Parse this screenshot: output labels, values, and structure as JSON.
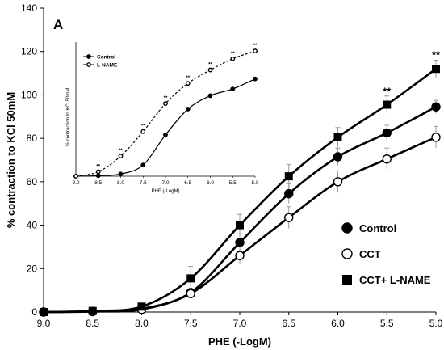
{
  "panel_label": "A",
  "chart_data": [
    {
      "type": "line",
      "xlabel": "PHE (-LogM)",
      "ylabel": "% contraction to KCl 50mM",
      "x": [
        9.0,
        8.5,
        8.0,
        7.5,
        7.0,
        6.5,
        6.0,
        5.5,
        5.0
      ],
      "x_tick_labels": [
        "9.0",
        "8.5",
        "8.0",
        "7.5",
        "7.0",
        "6.5",
        "6.0",
        "5.5",
        "5.0"
      ],
      "xlim": [
        9.0,
        5.0
      ],
      "x_reversed": true,
      "ylim": [
        0,
        140
      ],
      "y_ticks": [
        0,
        20,
        40,
        60,
        80,
        100,
        120,
        140
      ],
      "grid": false,
      "legend_position": "bottom-right",
      "series": [
        {
          "name": "Control",
          "marker": "filled-circle",
          "values": [
            0,
            0.3,
            1.5,
            9,
            32,
            54.5,
            71.5,
            82.5,
            94.5
          ],
          "errors": [
            0,
            0.2,
            0.5,
            1.5,
            4,
            4.5,
            4,
            3.5,
            3
          ]
        },
        {
          "name": "CCT",
          "marker": "open-circle",
          "values": [
            0,
            0.2,
            1.2,
            8.5,
            26,
            43.5,
            60,
            70.5,
            80.5
          ],
          "errors": [
            0,
            0.2,
            0.5,
            1.5,
            4,
            5,
            5,
            5,
            5
          ]
        },
        {
          "name": "CCT+ L-NAME",
          "marker": "filled-square",
          "values": [
            0,
            0.5,
            2.5,
            15.5,
            40,
            62.5,
            80.5,
            95.5,
            112
          ],
          "errors": [
            0,
            0.3,
            1,
            5.5,
            5,
            5.5,
            4.5,
            4,
            4
          ]
        }
      ],
      "annotations": [
        {
          "text": "**",
          "x": 5.5,
          "y": 100
        },
        {
          "text": "**",
          "x": 5.0,
          "y": 117
        }
      ]
    },
    {
      "type": "line",
      "inset": true,
      "xlabel": "PHE (-LogM)",
      "ylabel": "% contraction to KCl 50mM",
      "x": [
        9.0,
        8.5,
        8.0,
        7.5,
        7.0,
        6.5,
        6.0,
        5.5,
        5.0
      ],
      "x_tick_labels": [
        "9.0",
        "8.5",
        "8.0",
        "7.5",
        "7.0",
        "6.5",
        "6.0",
        "5.5",
        "5.0"
      ],
      "xlim": [
        9.0,
        5.0
      ],
      "x_reversed": true,
      "ylim": [
        0,
        120
      ],
      "legend_position": "top-left",
      "series": [
        {
          "name": "Control",
          "marker": "filled-circle",
          "line": "solid",
          "values": [
            0,
            0.5,
            2,
            10,
            37,
            60,
            72,
            78,
            87
          ]
        },
        {
          "name": "L-NAME",
          "marker": "open-circle",
          "line": "dashed",
          "values": [
            0,
            4,
            18,
            40,
            65,
            83,
            95,
            105,
            112
          ]
        }
      ],
      "annotations": [
        {
          "text": "**",
          "x": 8.5
        },
        {
          "text": "**",
          "x": 8.0
        },
        {
          "text": "**",
          "x": 7.5
        },
        {
          "text": "**",
          "x": 7.0
        },
        {
          "text": "**",
          "x": 6.5
        },
        {
          "text": "**",
          "x": 6.0
        },
        {
          "text": "**",
          "x": 5.5
        },
        {
          "text": "**",
          "x": 5.0
        }
      ]
    }
  ]
}
